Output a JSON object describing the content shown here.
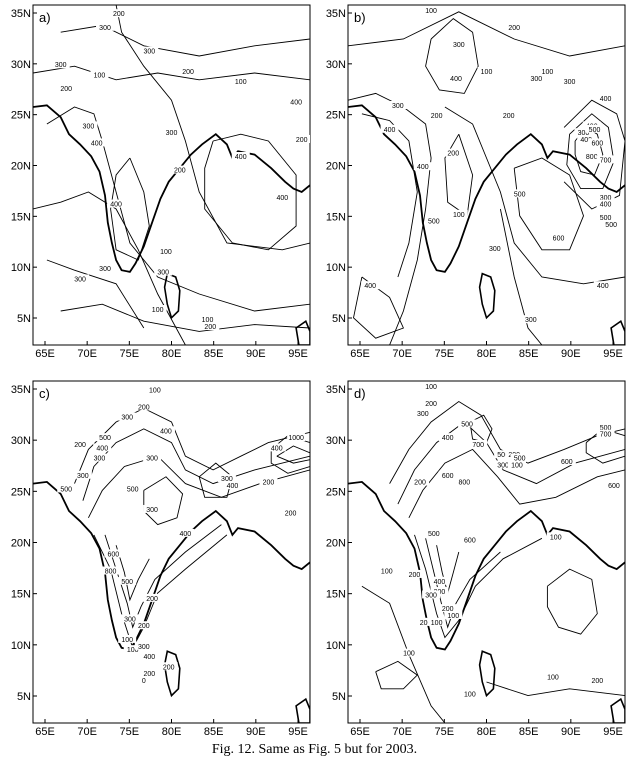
{
  "figure": {
    "caption": "Fig. 12. Same as Fig. 5 but for 2003.",
    "lat_labels": [
      "35N",
      "30N",
      "25N",
      "20N",
      "15N",
      "10N",
      "5N"
    ],
    "lon_labels": [
      "65E",
      "70E",
      "75E",
      "80E",
      "85E",
      "90E",
      "95E"
    ],
    "panels": [
      {
        "id": "a",
        "label": "a)",
        "contour_labels": [
          "200",
          "100",
          "200",
          "300",
          "200",
          "100",
          "300",
          "400",
          "300",
          "200",
          "400",
          "400",
          "200",
          "300",
          "400",
          "400",
          "100",
          "300",
          "300",
          "300",
          "100",
          "200",
          "100",
          "300"
        ]
      },
      {
        "id": "b",
        "label": "b)",
        "contour_labels": [
          "100",
          "300",
          "400",
          "100",
          "200",
          "300",
          "200",
          "400",
          "300",
          "400",
          "500",
          "600",
          "800",
          "700",
          "300",
          "400",
          "500",
          "500",
          "200",
          "300",
          "400",
          "400",
          "500",
          "500",
          "100",
          "300",
          "200",
          "100",
          "400",
          "600",
          "400",
          "300",
          "400",
          "300"
        ]
      },
      {
        "id": "c",
        "label": "c)",
        "contour_labels": [
          "100",
          "200",
          "300",
          "500",
          "400",
          "300",
          "200",
          "300",
          "500",
          "400",
          "1000",
          "300",
          "400",
          "200",
          "300",
          "400",
          "200",
          "300",
          "500",
          "400",
          "600",
          "800",
          "500",
          "300",
          "200",
          "100",
          "200",
          "400",
          "200",
          "100",
          "300",
          "200",
          "0"
        ]
      },
      {
        "id": "d",
        "label": "d)",
        "contour_labels": [
          "100",
          "200",
          "300",
          "500",
          "400",
          "500",
          "700",
          "600",
          "300",
          "200",
          "100",
          "500",
          "200",
          "600",
          "500",
          "700",
          "600",
          "800",
          "600",
          "500",
          "400",
          "300",
          "200",
          "100",
          "300",
          "200",
          "100",
          "100",
          "100",
          "200",
          "100",
          "200",
          "100",
          "100"
        ]
      }
    ]
  }
}
